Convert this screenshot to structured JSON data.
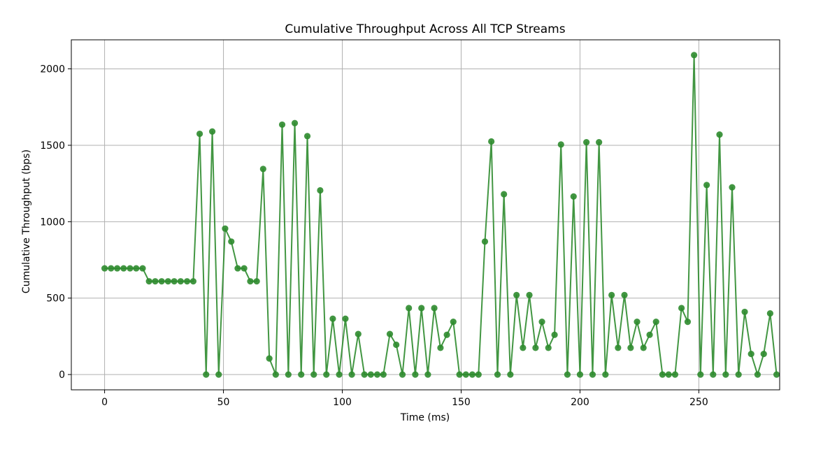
{
  "chart_data": {
    "type": "line",
    "title": "Cumulative Throughput Across All TCP Streams",
    "xlabel": "Time (ms)",
    "ylabel": "Cumulative Throughput (bps)",
    "xlim": [
      -14,
      284
    ],
    "ylim": [
      -100,
      2190
    ],
    "x_ticks": [
      0,
      50,
      100,
      150,
      200,
      250
    ],
    "y_ticks": [
      0,
      500,
      1000,
      1500,
      2000
    ],
    "grid": true,
    "legend": "none",
    "marker": "circle",
    "color": "#2e8b2e",
    "series": [
      {
        "x": [
          0,
          2.7,
          5.3,
          8,
          10.7,
          13.3,
          16,
          18.7,
          21.3,
          24,
          26.7,
          29.3,
          32,
          34.7,
          37.3,
          40,
          42.7,
          45.3,
          48,
          50.7,
          53.3,
          56,
          58.7,
          61.3,
          64,
          66.7,
          69.3,
          72,
          74.7,
          77.3,
          80,
          82.7,
          85.3,
          88,
          90.7,
          93.3,
          96,
          98.7,
          101.3,
          104,
          106.7,
          109.3,
          112,
          114.7,
          117.3,
          120,
          122.7,
          125.3,
          128,
          130.7,
          133.3,
          136,
          138.7,
          141.3,
          144,
          146.7,
          149.3,
          152,
          154.7,
          157.3,
          160,
          162.7,
          165.3,
          168,
          170.7,
          173.3,
          176,
          178.7,
          181.3,
          184,
          186.7,
          189.3,
          192,
          194.7,
          197.3,
          200,
          202.7,
          205.3,
          208,
          210.7,
          213.3,
          216,
          218.7,
          221.3,
          224,
          226.7,
          229.3,
          232,
          234.7,
          237.3,
          240,
          242.7,
          245.3,
          248,
          250.7,
          253.3,
          256,
          258.7,
          261.3,
          264,
          266.7,
          269.3,
          272,
          274.7,
          277.3,
          280,
          282.7
        ],
        "values": [
          695,
          695,
          695,
          695,
          695,
          695,
          695,
          610,
          610,
          610,
          610,
          610,
          610,
          610,
          610,
          1575,
          0,
          1590,
          0,
          955,
          870,
          695,
          695,
          610,
          610,
          1345,
          105,
          0,
          1635,
          0,
          1645,
          0,
          1560,
          0,
          1205,
          0,
          365,
          0,
          365,
          0,
          265,
          0,
          0,
          0,
          0,
          265,
          195,
          0,
          435,
          0,
          435,
          0,
          435,
          175,
          260,
          345,
          0,
          0,
          0,
          0,
          870,
          1525,
          0,
          1180,
          0,
          520,
          175,
          520,
          175,
          345,
          175,
          260,
          1505,
          0,
          1165,
          0,
          1520,
          0,
          1520,
          0,
          520,
          175,
          520,
          175,
          345,
          175,
          260,
          345,
          0,
          0,
          0,
          435,
          345,
          2090,
          0,
          1240,
          0,
          1570,
          0,
          1225,
          0,
          410,
          135,
          0,
          135,
          400,
          0
        ]
      }
    ]
  }
}
